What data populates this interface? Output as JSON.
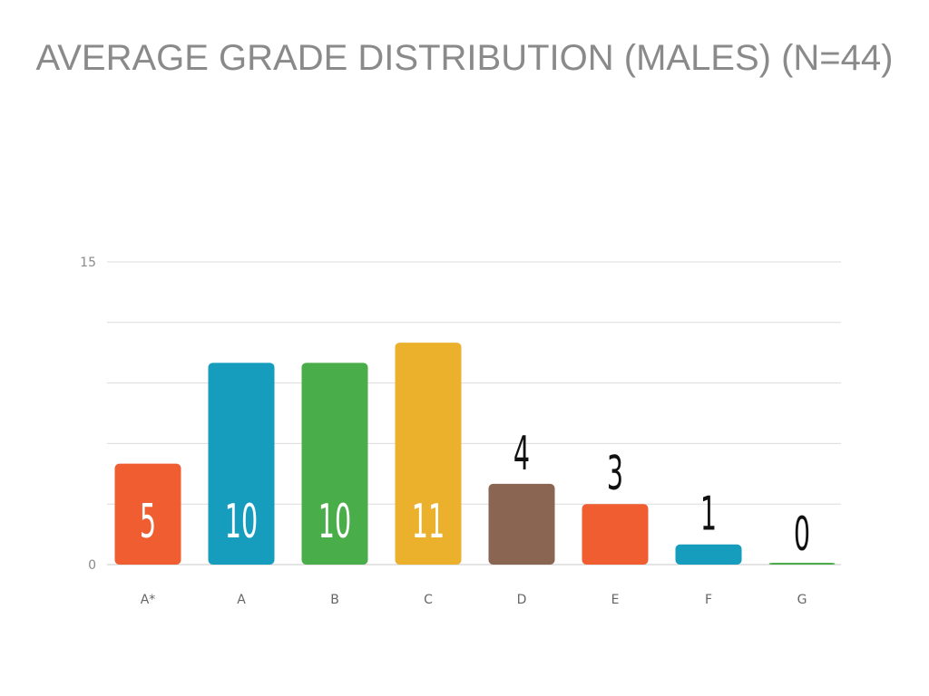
{
  "chart_data": {
    "type": "bar",
    "title": "AVERAGE GRADE DISTRIBUTION (MALES) (N=44)",
    "categories": [
      "A*",
      "A",
      "B",
      "C",
      "D",
      "E",
      "F",
      "G"
    ],
    "values": [
      5,
      10,
      10,
      11,
      4,
      3,
      1,
      0
    ],
    "colors": [
      "#f05d31",
      "#169dbd",
      "#49ad4a",
      "#ebb02c",
      "#8a6551",
      "#f05d31",
      "#169dbd",
      "#49ad4a"
    ],
    "value_label_colors": [
      "#ffffff",
      "#ffffff",
      "#ffffff",
      "#ffffff",
      "#111111",
      "#111111",
      "#111111",
      "#111111"
    ],
    "ylim": [
      0,
      15
    ],
    "y_tick_labels": [
      "0",
      "15"
    ],
    "gridlines": [
      0,
      3,
      6,
      9,
      12,
      15
    ],
    "grid": true,
    "xlabel": "",
    "ylabel": ""
  }
}
